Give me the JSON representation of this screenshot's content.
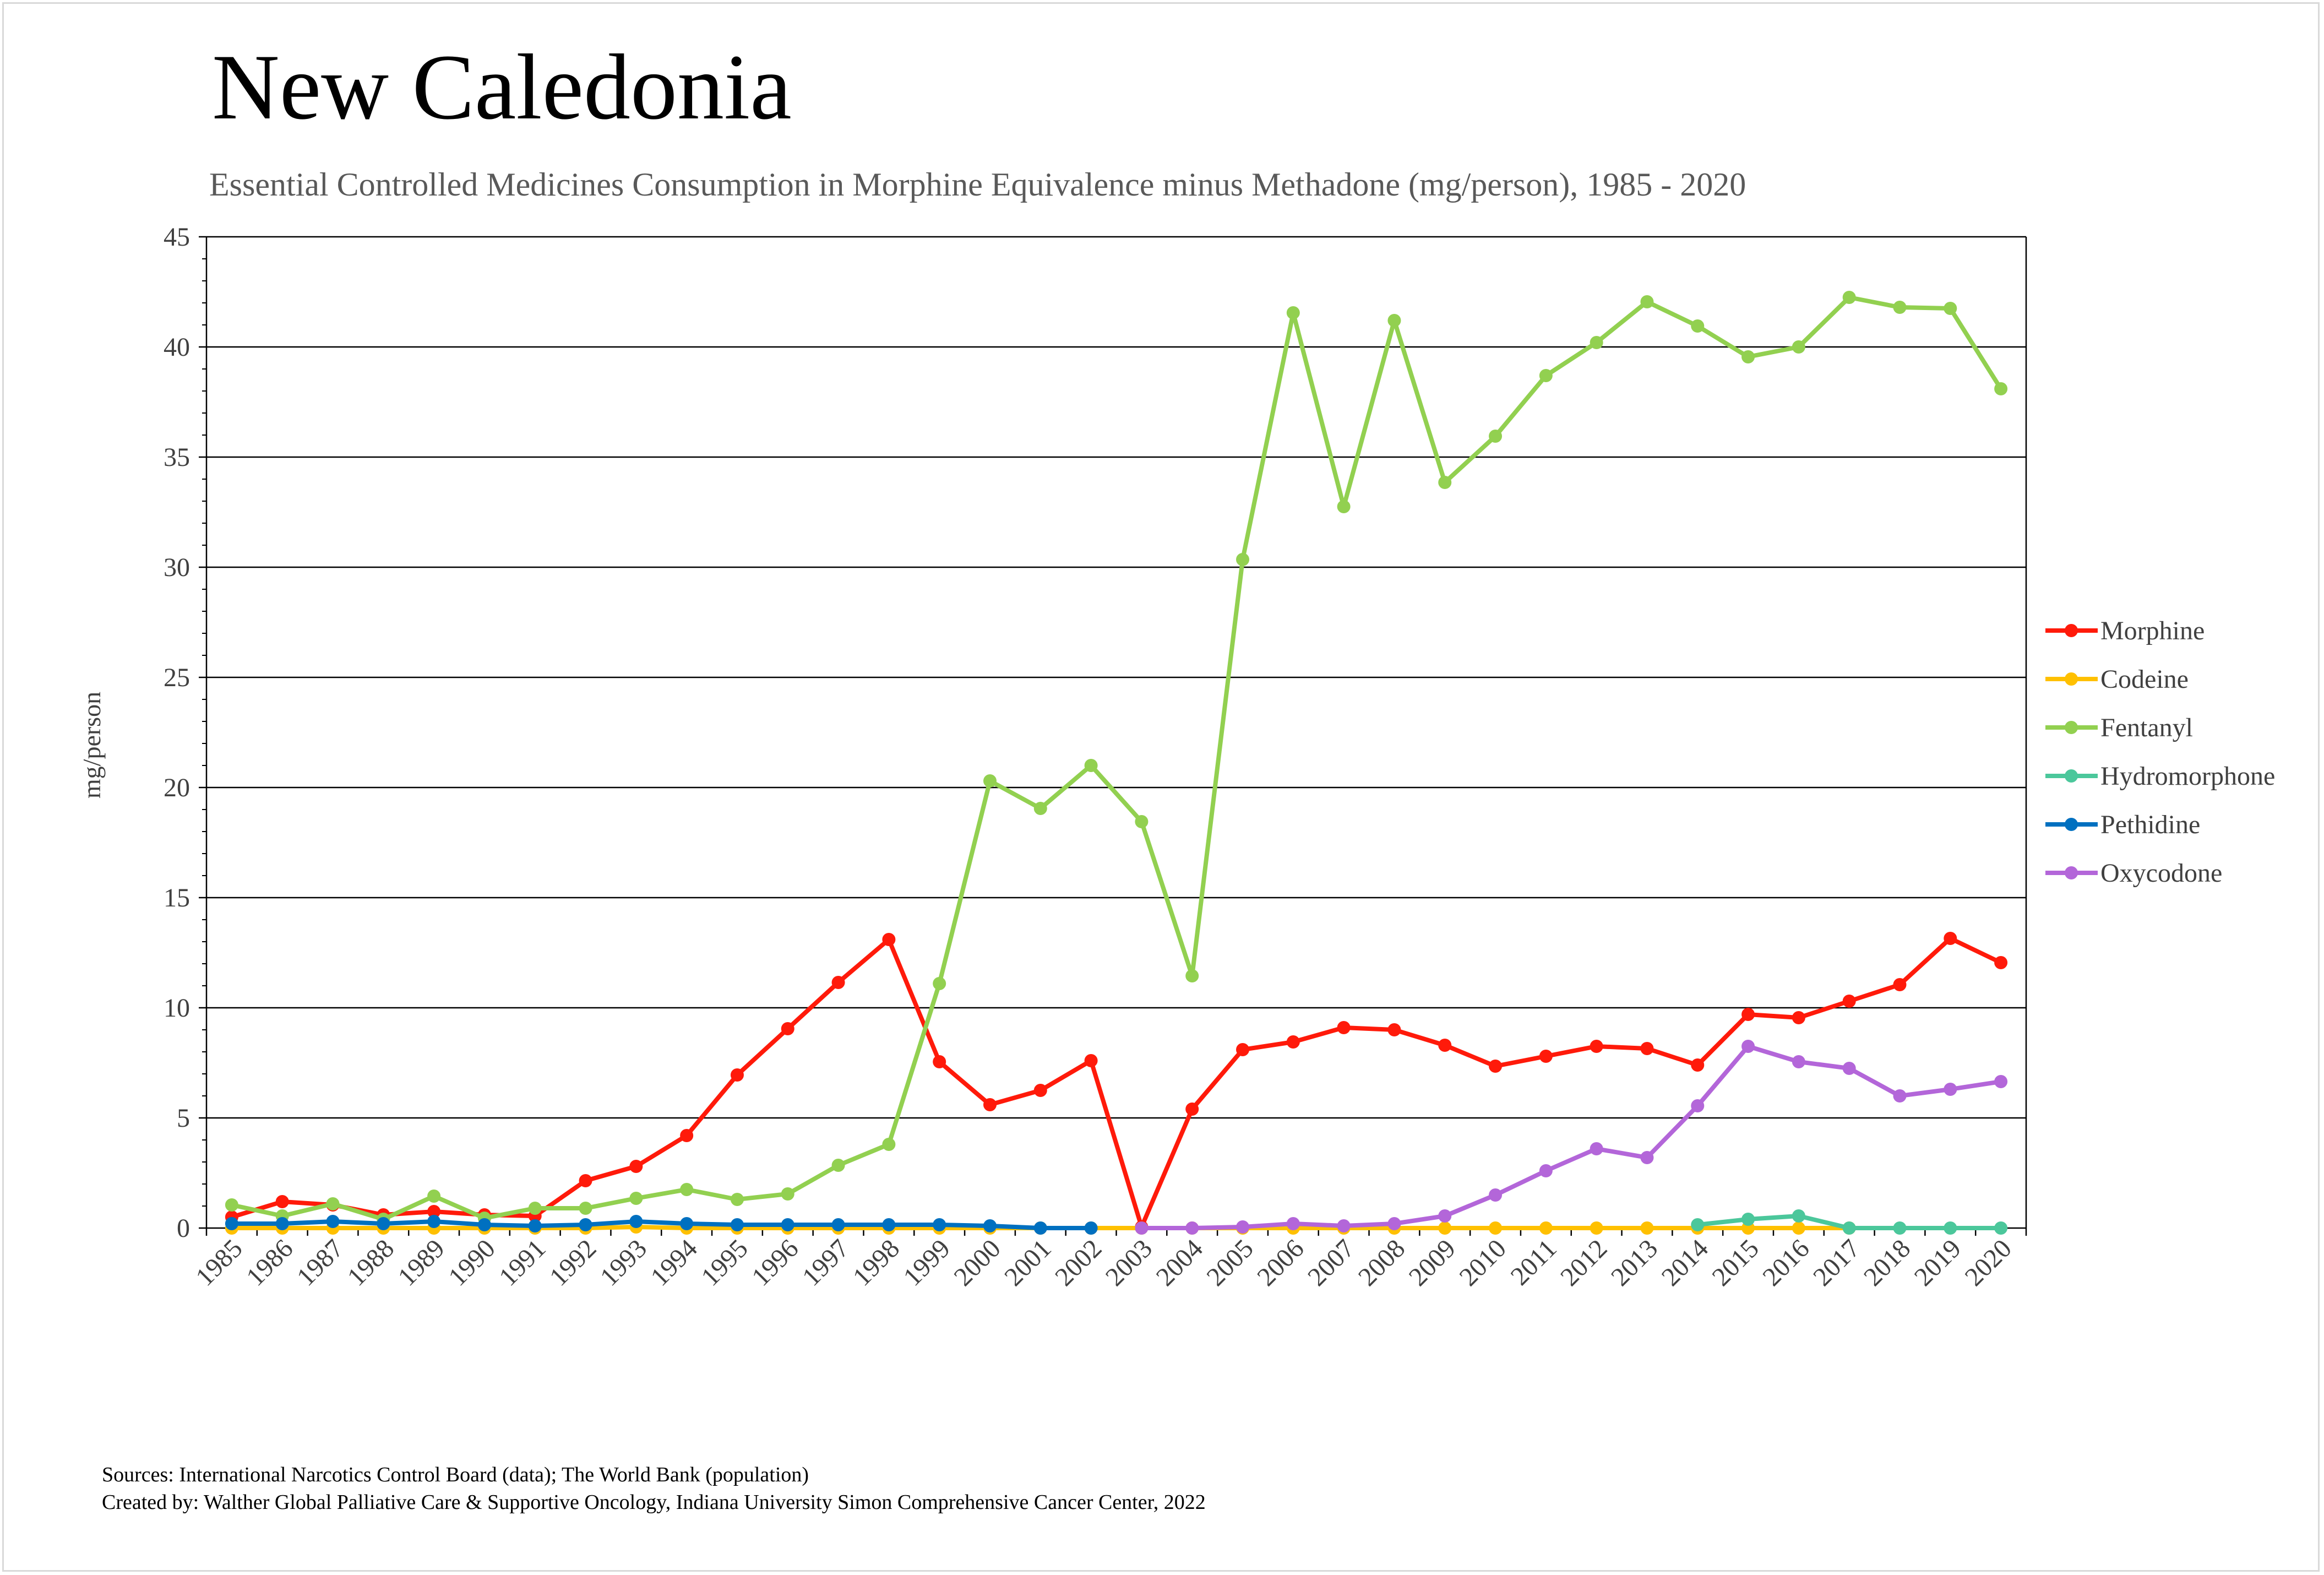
{
  "chart_data": {
    "type": "line",
    "title": "New Caledonia",
    "subtitle": "Essential Controlled Medicines Consumption in Morphine Equivalence minus Methadone (mg/person), 1985 - 2020",
    "xlabel": "",
    "ylabel": "mg/person",
    "ylim": [
      0,
      45
    ],
    "yticks": [
      "0",
      "5",
      "10",
      "15",
      "20",
      "25",
      "30",
      "35",
      "40",
      "45"
    ],
    "grid": true,
    "legend_position": "right",
    "categories": [
      "1985",
      "1986",
      "1987",
      "1988",
      "1989",
      "1990",
      "1991",
      "1992",
      "1993",
      "1994",
      "1995",
      "1996",
      "1997",
      "1998",
      "1999",
      "2000",
      "2001",
      "2002",
      "2003",
      "2004",
      "2005",
      "2006",
      "2007",
      "2008",
      "2009",
      "2010",
      "2011",
      "2012",
      "2013",
      "2014",
      "2015",
      "2016",
      "2017",
      "2018",
      "2019",
      "2020"
    ],
    "series": [
      {
        "name": "Morphine",
        "color": "#ff1a0a",
        "values": [
          0.5,
          1.2,
          1.05,
          0.6,
          0.75,
          0.6,
          0.55,
          2.15,
          2.8,
          4.2,
          6.95,
          9.05,
          11.15,
          13.1,
          7.55,
          5.6,
          6.25,
          7.6,
          0.05,
          5.4,
          8.1,
          8.45,
          9.1,
          9.0,
          8.3,
          7.35,
          7.8,
          8.25,
          8.15,
          7.4,
          9.7,
          9.55,
          10.3,
          11.05,
          13.15,
          12.05
        ]
      },
      {
        "name": "Codeine",
        "color": "#ffc000",
        "values": [
          0.0,
          0.0,
          0.0,
          0.0,
          0.0,
          0.0,
          0.0,
          0.0,
          0.05,
          0.0,
          0.0,
          0.0,
          0.0,
          0.0,
          0.0,
          0.0,
          0.0,
          0.0,
          0.0,
          0.0,
          0.0,
          0.0,
          0.0,
          0.0,
          0.0,
          0.0,
          0.0,
          0.0,
          0.0,
          0.0,
          0.0,
          0.0,
          0.0,
          null,
          null,
          null
        ]
      },
      {
        "name": "Fentanyl",
        "color": "#92d050",
        "values": [
          1.05,
          0.55,
          1.1,
          0.4,
          1.45,
          0.45,
          0.9,
          0.9,
          1.35,
          1.75,
          1.3,
          1.55,
          2.85,
          3.8,
          11.1,
          20.3,
          19.05,
          21.0,
          18.45,
          11.45,
          30.35,
          41.55,
          32.75,
          41.2,
          33.85,
          35.95,
          38.7,
          40.2,
          42.05,
          40.95,
          39.55,
          40.0,
          42.25,
          41.8,
          41.75,
          38.1
        ]
      },
      {
        "name": "Hydromorphone",
        "color": "#4bc79b",
        "values": [
          null,
          null,
          null,
          null,
          null,
          null,
          null,
          null,
          null,
          null,
          null,
          null,
          null,
          null,
          null,
          null,
          null,
          null,
          null,
          null,
          null,
          null,
          null,
          null,
          null,
          null,
          null,
          null,
          null,
          0.15,
          0.4,
          0.55,
          0.0,
          0.0,
          0.0,
          0.0
        ]
      },
      {
        "name": "Pethidine",
        "color": "#0070c0",
        "values": [
          0.2,
          0.2,
          0.3,
          0.2,
          0.3,
          0.15,
          0.1,
          0.15,
          0.3,
          0.2,
          0.15,
          0.15,
          0.15,
          0.15,
          0.15,
          0.1,
          0.0,
          0.0,
          null,
          null,
          null,
          null,
          null,
          null,
          null,
          null,
          null,
          null,
          null,
          null,
          null,
          null,
          null,
          null,
          null,
          null
        ]
      },
      {
        "name": "Oxycodone",
        "color": "#b366d9",
        "values": [
          null,
          null,
          null,
          null,
          null,
          null,
          null,
          null,
          null,
          null,
          null,
          null,
          null,
          null,
          null,
          null,
          null,
          null,
          0.0,
          0.0,
          0.05,
          0.2,
          0.1,
          0.2,
          0.55,
          1.5,
          2.6,
          3.6,
          3.2,
          5.55,
          8.25,
          7.55,
          7.25,
          6.0,
          6.3,
          6.65
        ]
      }
    ]
  },
  "footer": {
    "sources": "Sources: International Narcotics Control Board (data); The World Bank (population)",
    "created_by": "Created by: Walther Global Palliative Care & Supportive Oncology, Indiana University Simon Comprehensive Cancer Center, 2022"
  }
}
